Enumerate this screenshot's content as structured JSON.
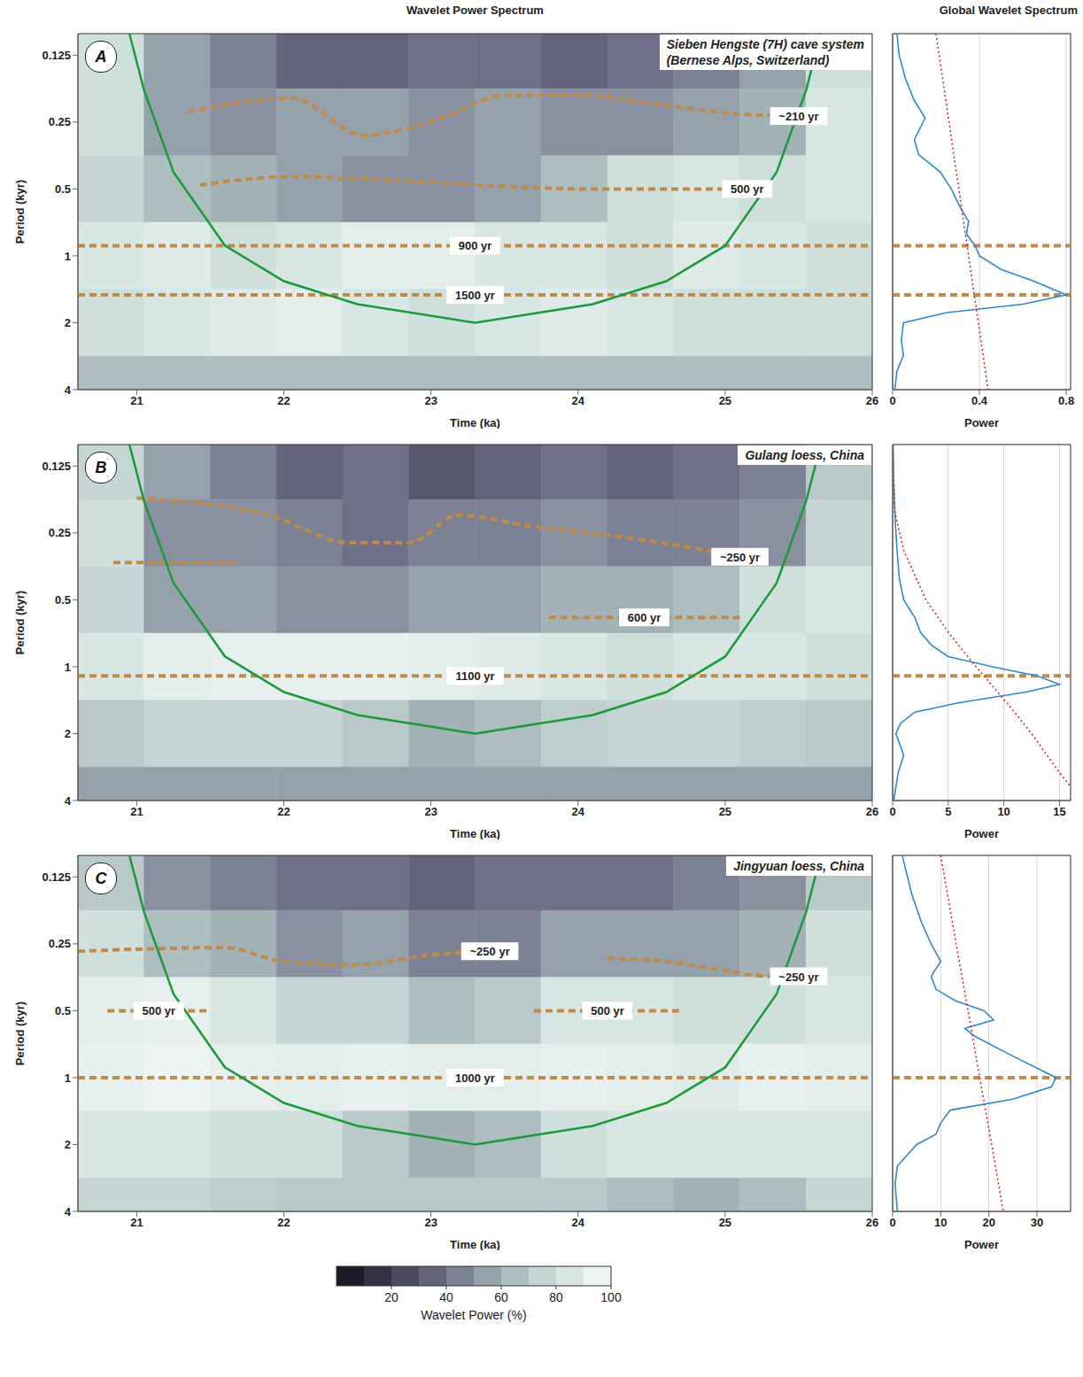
{
  "left_title": "Wavelet Power Spectrum",
  "right_title": "Global Wavelet Spectrum",
  "colorbar": {
    "label": "Wavelet Power (%)",
    "range": [
      0,
      100
    ],
    "ticks": [
      20,
      40,
      60,
      80,
      100
    ]
  },
  "chart_data": [
    {
      "type": "wavelet",
      "letter": "A",
      "title": "Sieben Hengste (7H) cave system (Bernese Alps, Switzerland)",
      "x_label": "Time (ka)",
      "y_label": "Period (kyr)",
      "xlim": [
        20.6,
        26
      ],
      "xticks": [
        21,
        22,
        23,
        24,
        25,
        26
      ],
      "ylim": [
        0.1,
        4
      ],
      "yticks": [
        0.125,
        0.25,
        0.5,
        1,
        2,
        4
      ],
      "log": "y",
      "grid": false,
      "heatmap": {
        "x_edges": [
          20.6,
          21.05,
          21.5,
          21.95,
          22.4,
          22.85,
          23.3,
          23.75,
          24.2,
          24.65,
          25.1,
          25.55,
          26
        ],
        "y_edges": [
          0.1,
          0.177,
          0.354,
          0.707,
          1.414,
          2.83,
          4
        ],
        "cells": [
          [
            80,
            55,
            45,
            35,
            35,
            40,
            40,
            35,
            40,
            45,
            55,
            80
          ],
          [
            80,
            55,
            50,
            55,
            55,
            50,
            55,
            50,
            50,
            55,
            60,
            85
          ],
          [
            75,
            65,
            60,
            55,
            50,
            50,
            55,
            65,
            80,
            85,
            80,
            85
          ],
          [
            85,
            88,
            80,
            85,
            90,
            90,
            85,
            85,
            80,
            88,
            85,
            80
          ],
          [
            80,
            85,
            88,
            90,
            85,
            80,
            85,
            88,
            85,
            80,
            80,
            80
          ],
          [
            65,
            65,
            65,
            65,
            65,
            65,
            65,
            65,
            65,
            65,
            65,
            65
          ]
        ]
      },
      "cone_of_influence": {
        "x": [
          20.95,
          21.05,
          21.25,
          21.6,
          22.0,
          22.5,
          23.3,
          24.1,
          24.6,
          25.0,
          25.35,
          25.55,
          25.65
        ],
        "period": [
          0.1,
          0.18,
          0.42,
          0.9,
          1.3,
          1.65,
          2,
          1.65,
          1.3,
          0.9,
          0.42,
          0.18,
          0.1
        ]
      },
      "periodicities": [
        {
          "label": "~210 yr",
          "x": [
            21.35,
            22.06,
            22.54,
            23.07,
            23.5,
            24.03,
            24.56,
            25.1,
            25.5
          ],
          "period": [
            0.226,
            0.195,
            0.287,
            0.24,
            0.19,
            0.19,
            0.209,
            0.23,
            0.235
          ]
        },
        {
          "label": "500 yr",
          "x": [
            21.43,
            22.06,
            22.54,
            23.07,
            23.61,
            24.03,
            24.67,
            25.15
          ],
          "period": [
            0.48,
            0.44,
            0.45,
            0.47,
            0.49,
            0.5,
            0.5,
            0.5
          ]
        },
        {
          "label": "900 yr",
          "x": [
            20.6,
            26
          ],
          "period": [
            0.9,
            0.9
          ]
        },
        {
          "label": "1500 yr",
          "x": [
            20.6,
            26
          ],
          "period": [
            1.5,
            1.5
          ]
        }
      ],
      "spectrum": {
        "type": "line",
        "x_label": "Power",
        "xlim": [
          0,
          0.82
        ],
        "xticks": [
          0,
          0.4,
          0.8
        ],
        "ylim": [
          0.1,
          4
        ],
        "yticks": [
          0.125,
          0.25,
          0.5,
          1,
          2,
          4
        ],
        "log": "y",
        "grid": true,
        "tick_labels": "x",
        "marked_periods": [
          0.9,
          1.5
        ],
        "series": [
          {
            "color": "#2a8ad4",
            "line_style": "solid",
            "period": [
              0.1,
              0.125,
              0.16,
              0.2,
              0.24,
              0.3,
              0.35,
              0.42,
              0.5,
              0.6,
              0.7,
              0.8,
              0.9,
              1,
              1.15,
              1.3,
              1.5,
              1.65,
              1.8,
              2,
              2.4,
              2.8,
              3.3,
              4
            ],
            "power": [
              0.02,
              0.03,
              0.06,
              0.1,
              0.15,
              0.1,
              0.12,
              0.22,
              0.27,
              0.31,
              0.35,
              0.34,
              0.38,
              0.4,
              0.5,
              0.65,
              0.8,
              0.6,
              0.25,
              0.05,
              0.04,
              0.05,
              0.02,
              0.01
            ]
          },
          {
            "color": "#e02020",
            "line_style": "dotted",
            "period": [
              0.1,
              0.25,
              0.5,
              1,
              2,
              4
            ],
            "power": [
              0.2,
              0.26,
              0.305,
              0.35,
              0.395,
              0.44
            ]
          }
        ]
      }
    },
    {
      "type": "wavelet",
      "letter": "B",
      "title": "Gulang loess, China",
      "x_label": "Time (ka)",
      "y_label": "Period (kyr)",
      "xlim": [
        20.6,
        26
      ],
      "xticks": [
        21,
        22,
        23,
        24,
        25,
        26
      ],
      "ylim": [
        0.1,
        4
      ],
      "yticks": [
        0.125,
        0.25,
        0.5,
        1,
        2,
        4
      ],
      "log": "y",
      "grid": false,
      "heatmap": {
        "x_edges": [
          20.6,
          21.05,
          21.5,
          21.95,
          22.4,
          22.85,
          23.3,
          23.75,
          24.2,
          24.65,
          25.1,
          25.55,
          26
        ],
        "y_edges": [
          0.1,
          0.177,
          0.354,
          0.707,
          1.414,
          2.83,
          4
        ],
        "cells": [
          [
            75,
            55,
            45,
            35,
            40,
            30,
            35,
            40,
            35,
            40,
            45,
            70
          ],
          [
            80,
            50,
            50,
            45,
            40,
            45,
            45,
            50,
            45,
            45,
            50,
            75
          ],
          [
            75,
            55,
            55,
            50,
            50,
            55,
            55,
            60,
            60,
            65,
            80,
            85
          ],
          [
            85,
            90,
            92,
            92,
            92,
            90,
            88,
            85,
            80,
            85,
            85,
            80
          ],
          [
            70,
            75,
            75,
            75,
            70,
            60,
            65,
            72,
            75,
            75,
            72,
            70
          ],
          [
            55,
            55,
            55,
            55,
            55,
            55,
            55,
            55,
            55,
            55,
            55,
            55
          ]
        ]
      },
      "cone_of_influence": {
        "x": [
          20.95,
          21.05,
          21.25,
          21.6,
          22.0,
          22.5,
          23.3,
          24.1,
          24.6,
          25.0,
          25.35,
          25.55,
          25.65
        ],
        "period": [
          0.1,
          0.18,
          0.42,
          0.9,
          1.3,
          1.65,
          2,
          1.65,
          1.3,
          0.9,
          0.42,
          0.18,
          0.1
        ]
      },
      "periodicities": [
        {
          "label": "~250 yr",
          "x": [
            21.0,
            21.9,
            22.44,
            22.86,
            23.18,
            23.7,
            24.14,
            24.56,
            25.1
          ],
          "period": [
            0.174,
            0.208,
            0.276,
            0.276,
            0.208,
            0.234,
            0.253,
            0.276,
            0.32
          ]
        },
        {
          "x": [
            20.84,
            21.7
          ],
          "period": [
            0.34,
            0.34
          ]
        },
        {
          "label": "600 yr",
          "x": [
            23.8,
            25.1
          ],
          "period": [
            0.6,
            0.6
          ]
        },
        {
          "label": "1100 yr",
          "x": [
            20.6,
            26
          ],
          "period": [
            1.1,
            1.1
          ]
        }
      ],
      "spectrum": {
        "type": "line",
        "x_label": "Power",
        "xlim": [
          0,
          16
        ],
        "xticks": [
          0,
          5,
          10,
          15
        ],
        "ylim": [
          0.1,
          4
        ],
        "yticks": [
          0.125,
          0.25,
          0.5,
          1,
          2,
          4
        ],
        "log": "y",
        "grid": true,
        "tick_labels": "x",
        "marked_periods": [
          1.1
        ],
        "series": [
          {
            "color": "#2a8ad4",
            "line_style": "solid",
            "period": [
              0.1,
              0.15,
              0.2,
              0.25,
              0.3,
              0.4,
              0.5,
              0.6,
              0.7,
              0.8,
              0.9,
              1,
              1.1,
              1.2,
              1.3,
              1.45,
              1.6,
              1.8,
              2,
              2.5,
              3,
              4
            ],
            "power": [
              0.05,
              0.1,
              0.2,
              0.3,
              0.4,
              0.6,
              1,
              2,
              2.5,
              3.5,
              5,
              9,
              13,
              15,
              12,
              6,
              2,
              0.7,
              0.3,
              1,
              0.5,
              0.1
            ]
          },
          {
            "color": "#e02020",
            "line_style": "dotted",
            "period": [
              0.1,
              0.2,
              0.3,
              0.5,
              0.7,
              1,
              1.5,
              2,
              3,
              4
            ],
            "power": [
              0,
              0.2,
              1,
              3,
              5,
              7.5,
              10.5,
              12.5,
              15,
              17
            ]
          }
        ]
      }
    },
    {
      "type": "wavelet",
      "letter": "C",
      "title": "Jingyuan loess, China",
      "x_label": "Time (ka)",
      "y_label": "Period (kyr)",
      "xlim": [
        20.6,
        26
      ],
      "xticks": [
        21,
        22,
        23,
        24,
        25,
        26
      ],
      "ylim": [
        0.1,
        4
      ],
      "yticks": [
        0.125,
        0.25,
        0.5,
        1,
        2,
        4
      ],
      "log": "y",
      "grid": false,
      "heatmap": {
        "x_edges": [
          20.6,
          21.05,
          21.5,
          21.95,
          22.4,
          22.85,
          23.3,
          23.75,
          24.2,
          24.65,
          25.1,
          25.55,
          26
        ],
        "y_edges": [
          0.1,
          0.177,
          0.354,
          0.707,
          1.414,
          2.83,
          4
        ],
        "cells": [
          [
            70,
            50,
            45,
            40,
            40,
            35,
            40,
            40,
            40,
            45,
            50,
            70
          ],
          [
            80,
            65,
            60,
            50,
            55,
            45,
            45,
            55,
            55,
            55,
            60,
            80
          ],
          [
            90,
            92,
            85,
            75,
            75,
            65,
            70,
            85,
            85,
            80,
            80,
            85
          ],
          [
            92,
            95,
            92,
            90,
            92,
            90,
            90,
            92,
            90,
            88,
            92,
            90
          ],
          [
            85,
            85,
            80,
            80,
            70,
            60,
            65,
            80,
            85,
            85,
            85,
            85
          ],
          [
            75,
            75,
            72,
            70,
            70,
            70,
            70,
            70,
            65,
            60,
            65,
            75
          ]
        ]
      },
      "cone_of_influence": {
        "x": [
          20.95,
          21.05,
          21.25,
          21.6,
          22.0,
          22.5,
          23.3,
          24.1,
          24.6,
          25.0,
          25.35,
          25.55,
          25.65
        ],
        "period": [
          0.1,
          0.18,
          0.42,
          0.9,
          1.3,
          1.65,
          2,
          1.65,
          1.3,
          0.9,
          0.42,
          0.18,
          0.1
        ]
      },
      "periodicities": [
        {
          "label": "~250 yr",
          "x": [
            20.6,
            21.6,
            22.0,
            22.5,
            23.0,
            23.4
          ],
          "period": [
            0.27,
            0.26,
            0.3,
            0.31,
            0.28,
            0.27
          ]
        },
        {
          "label": "~250 yr",
          "x": [
            24.2,
            24.6,
            25.0,
            25.3,
            25.5
          ],
          "period": [
            0.29,
            0.3,
            0.33,
            0.35,
            0.35
          ]
        },
        {
          "label": "500 yr",
          "x": [
            20.8,
            21.5
          ],
          "period": [
            0.5,
            0.5
          ]
        },
        {
          "label": "500 yr",
          "x": [
            23.7,
            24.7
          ],
          "period": [
            0.5,
            0.5
          ]
        },
        {
          "label": "1000 yr",
          "x": [
            20.6,
            26
          ],
          "period": [
            1,
            1
          ]
        }
      ],
      "spectrum": {
        "type": "line",
        "x_label": "Power",
        "xlim": [
          0,
          37
        ],
        "xticks": [
          0,
          10,
          20,
          30
        ],
        "ylim": [
          0.1,
          4
        ],
        "yticks": [
          0.125,
          0.25,
          0.5,
          1,
          2,
          4
        ],
        "log": "y",
        "grid": true,
        "tick_labels": "x",
        "marked_periods": [
          1
        ],
        "series": [
          {
            "color": "#2a8ad4",
            "line_style": "solid",
            "period": [
              0.1,
              0.15,
              0.2,
              0.25,
              0.3,
              0.35,
              0.4,
              0.45,
              0.5,
              0.55,
              0.6,
              0.65,
              0.8,
              1,
              1.1,
              1.25,
              1.4,
              1.6,
              1.8,
              2,
              2.5,
              3,
              4
            ],
            "power": [
              2,
              4,
              6,
              8,
              10,
              8,
              9,
              13,
              19,
              21,
              15,
              17,
              25,
              34,
              33,
              25,
              12,
              10,
              9,
              5,
              1,
              0.5,
              1
            ]
          },
          {
            "color": "#e02020",
            "line_style": "dotted",
            "period": [
              0.1,
              0.25,
              0.5,
              1,
              2,
              4
            ],
            "power": [
              10,
              13.2,
              15.7,
              18.1,
              20.6,
              23
            ]
          }
        ]
      }
    }
  ]
}
